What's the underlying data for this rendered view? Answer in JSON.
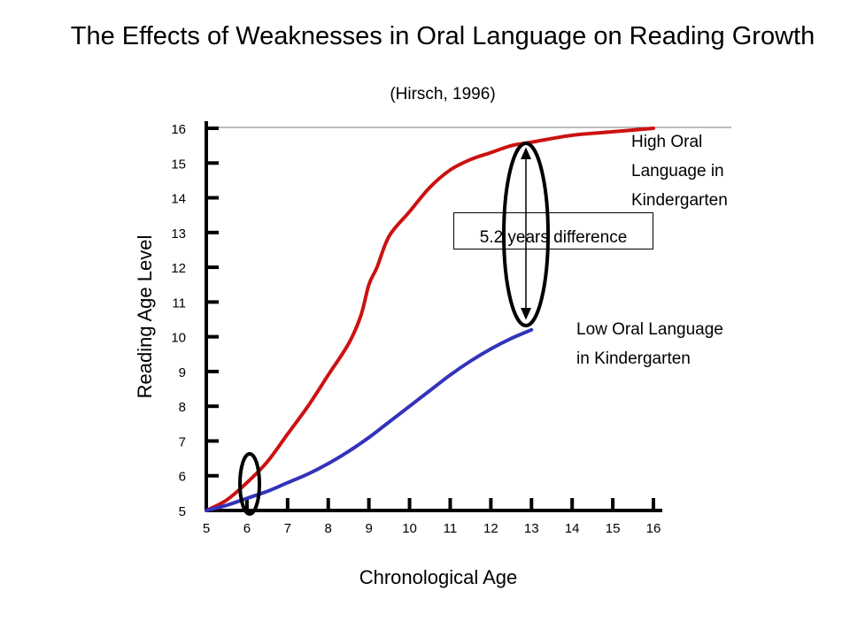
{
  "chart_data": {
    "type": "line",
    "title": "The Effects of Weaknesses in Oral Language on Reading Growth",
    "subtitle": "(Hirsch, 1996)",
    "xlabel": "Chronological Age",
    "ylabel": "Reading Age Level",
    "xlim": [
      5,
      16
    ],
    "ylim": [
      5,
      16
    ],
    "x_ticks": [
      5,
      6,
      7,
      8,
      9,
      10,
      11,
      12,
      13,
      14,
      15,
      16
    ],
    "y_ticks": [
      5,
      6,
      7,
      8,
      9,
      10,
      11,
      12,
      13,
      14,
      15,
      16
    ],
    "series": [
      {
        "name": "High Oral Language in Kindergarten",
        "color": "#cc1111",
        "points": [
          [
            5,
            5
          ],
          [
            5.5,
            5.3
          ],
          [
            6,
            5.8
          ],
          [
            6.5,
            6.4
          ],
          [
            7,
            7.2
          ],
          [
            7.5,
            8.0
          ],
          [
            8,
            8.9
          ],
          [
            8.5,
            9.8
          ],
          [
            8.8,
            10.6
          ],
          [
            9,
            11.5
          ],
          [
            9.2,
            12.0
          ],
          [
            9.5,
            12.9
          ],
          [
            10,
            13.6
          ],
          [
            10.5,
            14.3
          ],
          [
            11,
            14.8
          ],
          [
            11.5,
            15.1
          ],
          [
            12,
            15.3
          ],
          [
            12.5,
            15.5
          ],
          [
            13,
            15.6
          ],
          [
            14,
            15.8
          ],
          [
            15,
            15.9
          ],
          [
            16,
            16.0
          ]
        ]
      },
      {
        "name": "Low Oral Language in Kindergarten",
        "color": "#3333bb",
        "points": [
          [
            5,
            5
          ],
          [
            5.5,
            5.15
          ],
          [
            6,
            5.35
          ],
          [
            6.5,
            5.55
          ],
          [
            7,
            5.8
          ],
          [
            7.5,
            6.05
          ],
          [
            8,
            6.35
          ],
          [
            8.5,
            6.7
          ],
          [
            9,
            7.1
          ],
          [
            9.5,
            7.55
          ],
          [
            10,
            8.0
          ],
          [
            10.5,
            8.45
          ],
          [
            11,
            8.9
          ],
          [
            11.5,
            9.3
          ],
          [
            12,
            9.65
          ],
          [
            12.5,
            9.95
          ],
          [
            13,
            10.2
          ]
        ]
      }
    ],
    "annotations": {
      "high_label_lines": [
        "High Oral",
        "Language in",
        "Kindergarten"
      ],
      "low_label_lines": [
        "Low Oral Language",
        "in Kindergarten"
      ],
      "difference": "5.2 years difference"
    },
    "grid": false
  }
}
